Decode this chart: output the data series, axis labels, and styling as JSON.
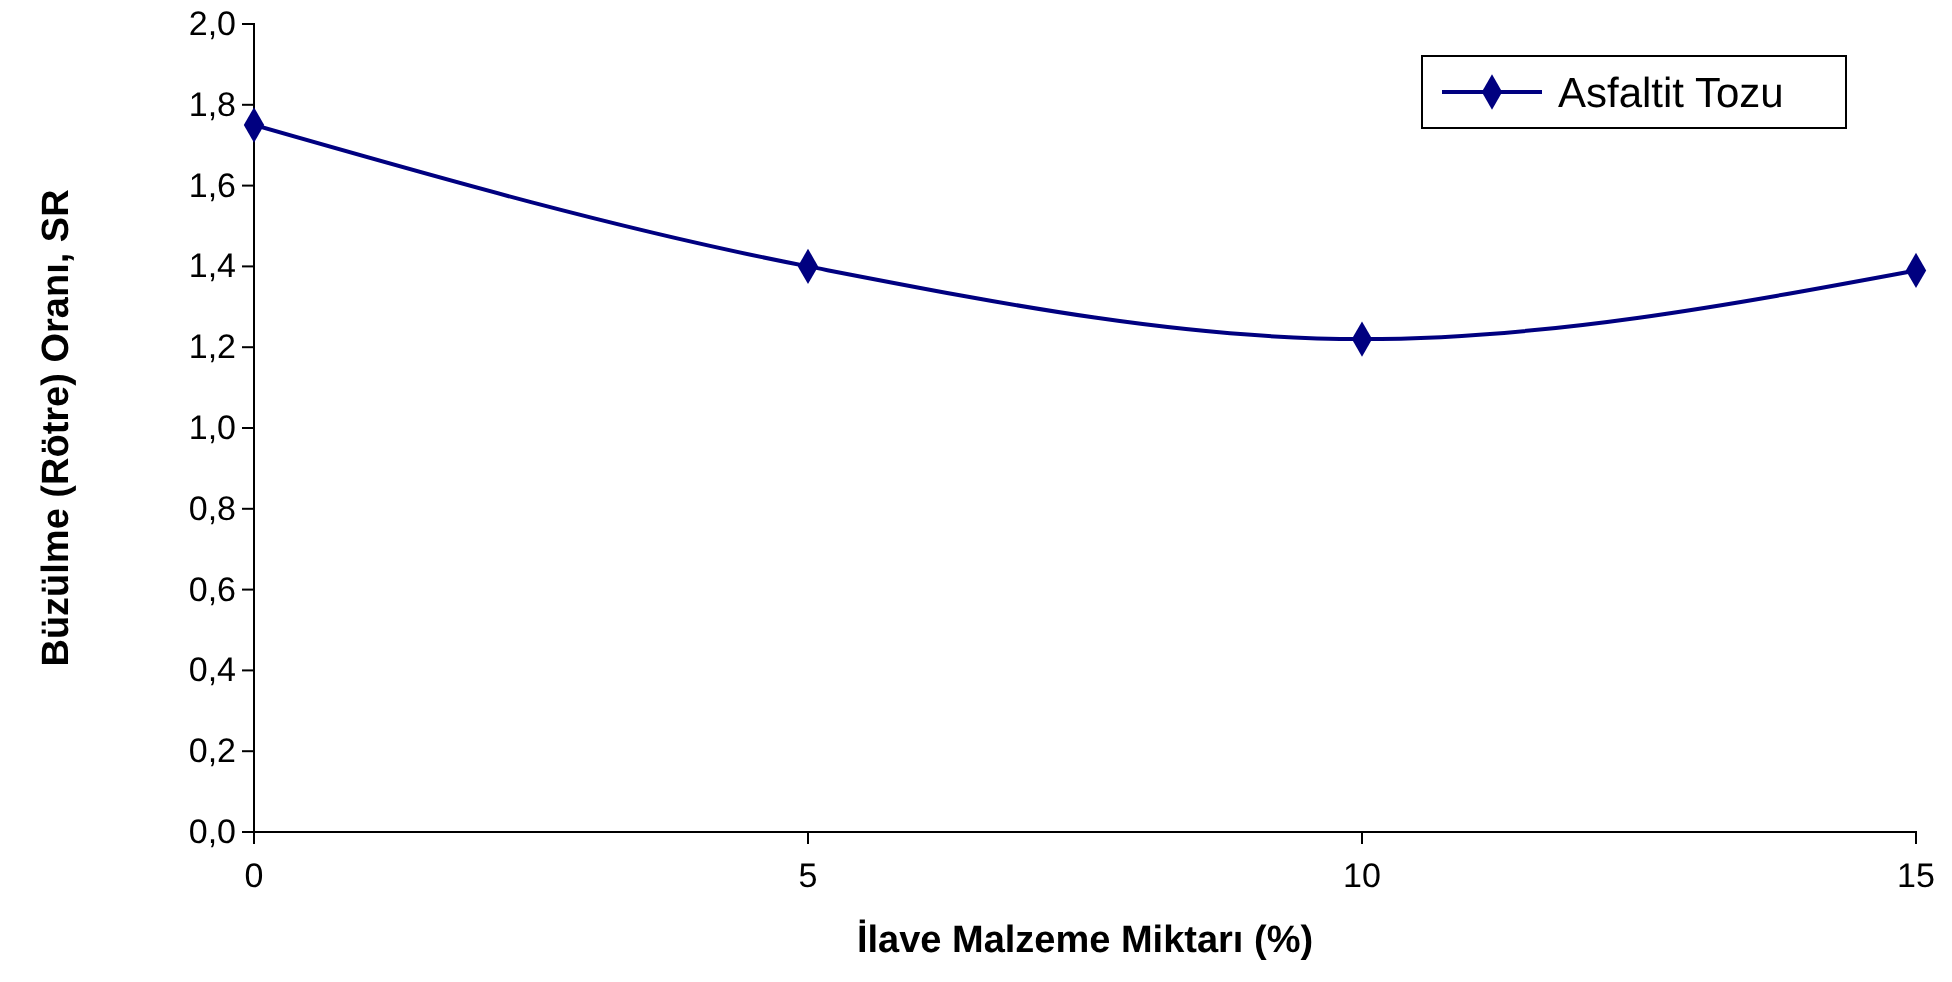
{
  "chart_data": {
    "type": "line",
    "xlabel": "İlave Malzeme Miktarı (%)",
    "ylabel": "Büzülme (Rötre) Oranı, SR",
    "x": [
      0,
      5,
      10,
      15
    ],
    "series": [
      {
        "name": "Asfaltit Tozu",
        "color": "#000080",
        "values": [
          1.75,
          1.4,
          1.22,
          1.39
        ]
      }
    ],
    "xlim": [
      0,
      15
    ],
    "xticks": [
      0,
      5,
      10,
      15
    ],
    "ylim": [
      0,
      2
    ],
    "yticks": [
      {
        "value": 0,
        "label": "0,0"
      },
      {
        "value": 0.2,
        "label": "0,2"
      },
      {
        "value": 0.4,
        "label": "0,4"
      },
      {
        "value": 0.6,
        "label": "0,6"
      },
      {
        "value": 0.8,
        "label": "0,8"
      },
      {
        "value": 1,
        "label": "1,0"
      },
      {
        "value": 1.2,
        "label": "1,2"
      },
      {
        "value": 1.4,
        "label": "1,4"
      },
      {
        "value": 1.6,
        "label": "1,6"
      },
      {
        "value": 1.8,
        "label": "1,8"
      },
      {
        "value": 2,
        "label": "2,0"
      }
    ],
    "grid": false,
    "legend": "top right",
    "marker": "diamond",
    "line_style": "solid"
  }
}
